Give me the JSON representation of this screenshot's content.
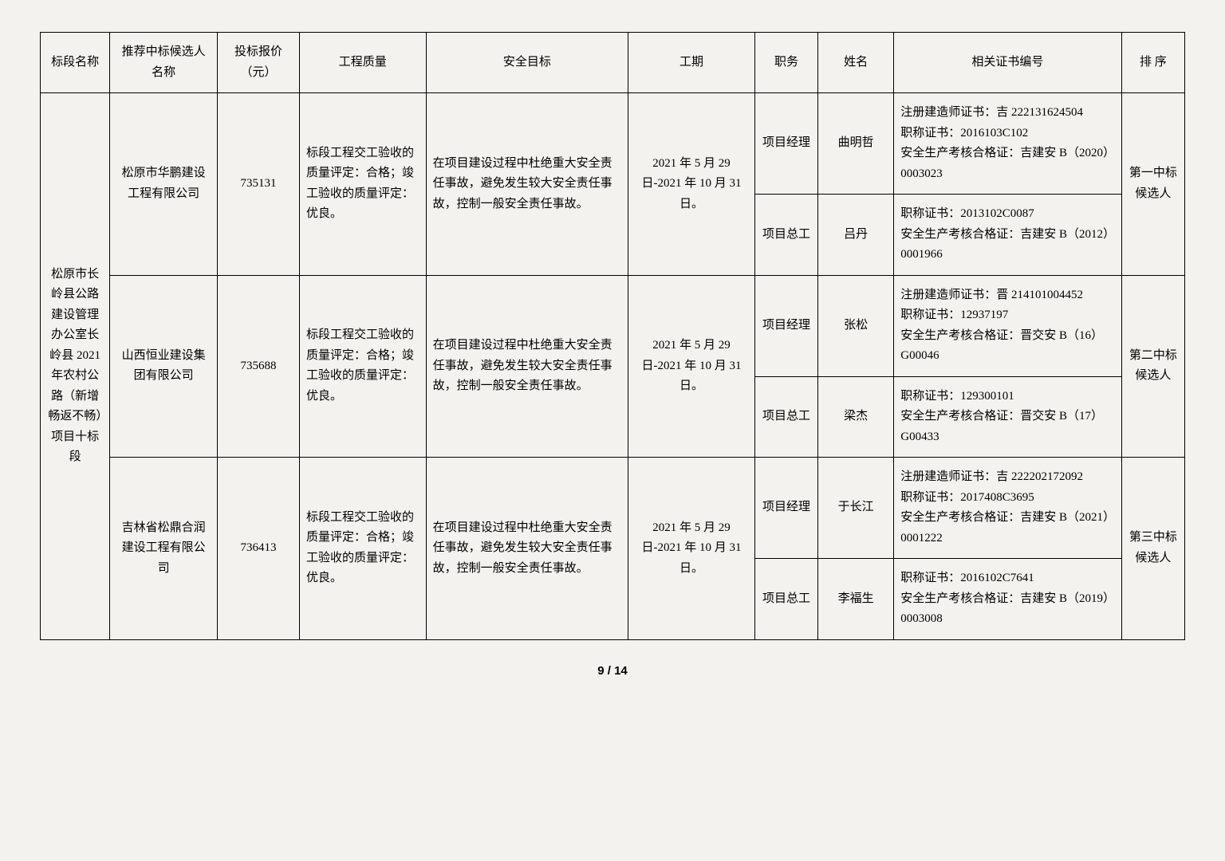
{
  "headers": {
    "section": "标段名称",
    "candidate": "推荐中标候选人名称",
    "bid": "投标报价（元）",
    "quality": "工程质量",
    "safety": "安全目标",
    "period": "工期",
    "role": "职务",
    "name": "姓名",
    "cert": "相关证书编号",
    "rank": "排 序"
  },
  "section_name": "松原市长岭县公路建设管理办公室长岭县 2021 年农村公路（新增畅返不畅）项目十标段",
  "quality_text": "标段工程交工验收的质量评定：合格；竣工验收的质量评定：优良。",
  "safety_text": "在项目建设过程中杜绝重大安全责任事故，避免发生较大安全责任事故，控制一般安全责任事故。",
  "period_text": "2021 年 5 月 29 日-2021 年 10 月 31 日。",
  "candidates": [
    {
      "company": "松原市华鹏建设工程有限公司",
      "bid": "735131",
      "rank": "第一中标候选人",
      "people": [
        {
          "role": "项目经理",
          "name": "曲明哲",
          "cert": "注册建造师证书：吉 222131624504\n职称证书：2016103C102\n安全生产考核合格证：吉建安 B（2020）0003023"
        },
        {
          "role": "项目总工",
          "name": "吕丹",
          "cert": "职称证书：2013102C0087\n安全生产考核合格证：吉建安 B（2012）0001966"
        }
      ]
    },
    {
      "company": "山西恒业建设集团有限公司",
      "bid": "735688",
      "rank": "第二中标候选人",
      "people": [
        {
          "role": "项目经理",
          "name": "张松",
          "cert": "注册建造师证书：晋 214101004452\n职称证书：12937197\n安全生产考核合格证：晋交安 B（16）G00046"
        },
        {
          "role": "项目总工",
          "name": "梁杰",
          "cert": "职称证书：129300101\n安全生产考核合格证：晋交安 B（17）G00433"
        }
      ]
    },
    {
      "company": "吉林省松鼎合润建设工程有限公司",
      "bid": "736413",
      "rank": "第三中标候选人",
      "people": [
        {
          "role": "项目经理",
          "name": "于长江",
          "cert": "注册建造师证书：吉 222202172092\n职称证书：2017408C3695\n安全生产考核合格证：吉建安 B（2021）0001222"
        },
        {
          "role": "项目总工",
          "name": "李福生",
          "cert": "职称证书：2016102C7641\n安全生产考核合格证：吉建安 B（2019）0003008"
        }
      ]
    }
  ],
  "page_footer": "9 / 14"
}
